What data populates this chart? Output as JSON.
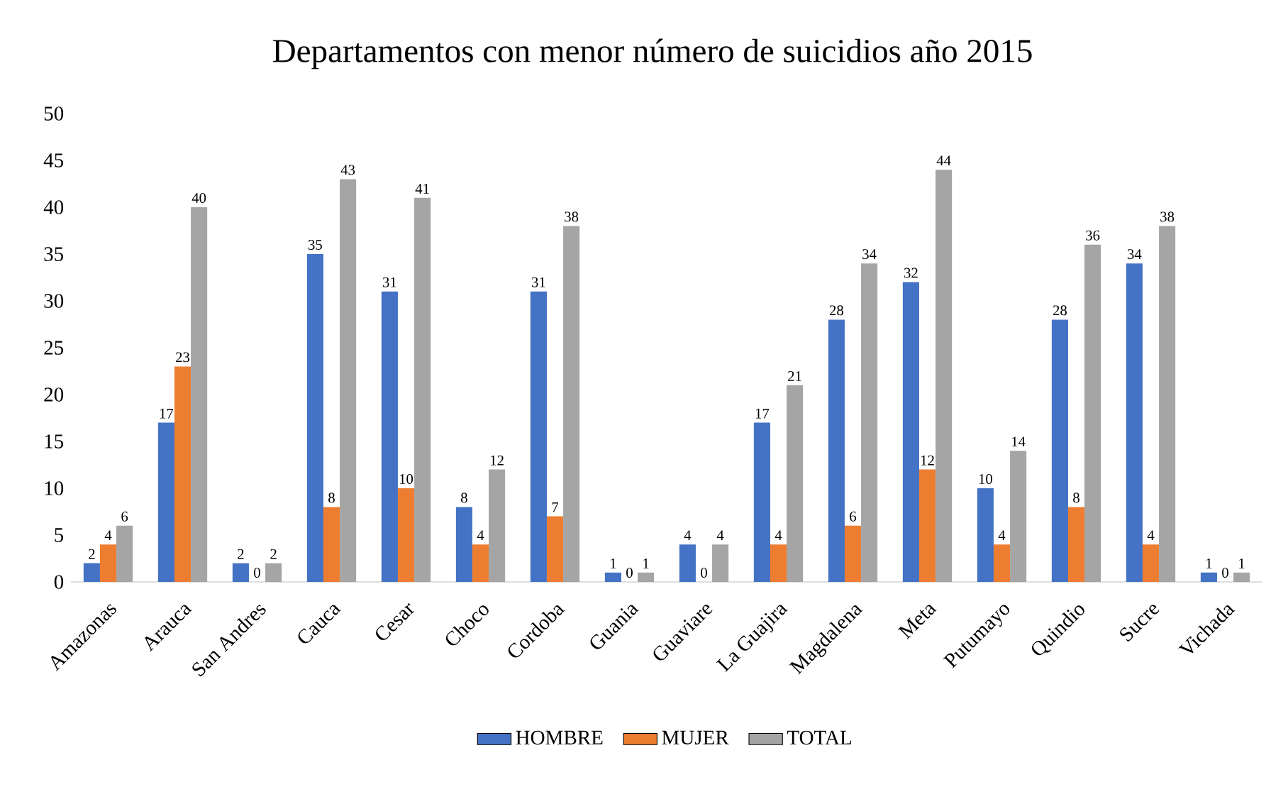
{
  "chart_data": {
    "type": "bar",
    "title": "Departamentos con menor número de suicidios año 2015",
    "categories": [
      "Amazonas",
      "Arauca",
      "San Andres",
      "Cauca",
      "Cesar",
      "Choco",
      "Cordoba",
      "Guania",
      "Guaviare",
      "La Guajira",
      "Magdalena",
      "Meta",
      "Putumayo",
      "Quindio",
      "Sucre",
      "Vichada"
    ],
    "series": [
      {
        "name": "HOMBRE",
        "color": "#4472c4",
        "values": [
          2,
          17,
          2,
          35,
          31,
          8,
          31,
          1,
          4,
          17,
          28,
          32,
          10,
          28,
          34,
          1
        ]
      },
      {
        "name": "MUJER",
        "color": "#ed7d31",
        "values": [
          4,
          23,
          0,
          8,
          10,
          4,
          7,
          0,
          0,
          4,
          6,
          12,
          4,
          8,
          4,
          0
        ]
      },
      {
        "name": "TOTAL",
        "color": "#a5a5a5",
        "values": [
          6,
          40,
          2,
          43,
          41,
          12,
          38,
          1,
          4,
          21,
          34,
          44,
          14,
          36,
          38,
          1
        ]
      }
    ],
    "ylim": [
      0,
      50
    ],
    "yticks": [
      0,
      5,
      10,
      15,
      20,
      25,
      30,
      35,
      40,
      45,
      50
    ],
    "data_labels": true,
    "legend": "bottom"
  }
}
